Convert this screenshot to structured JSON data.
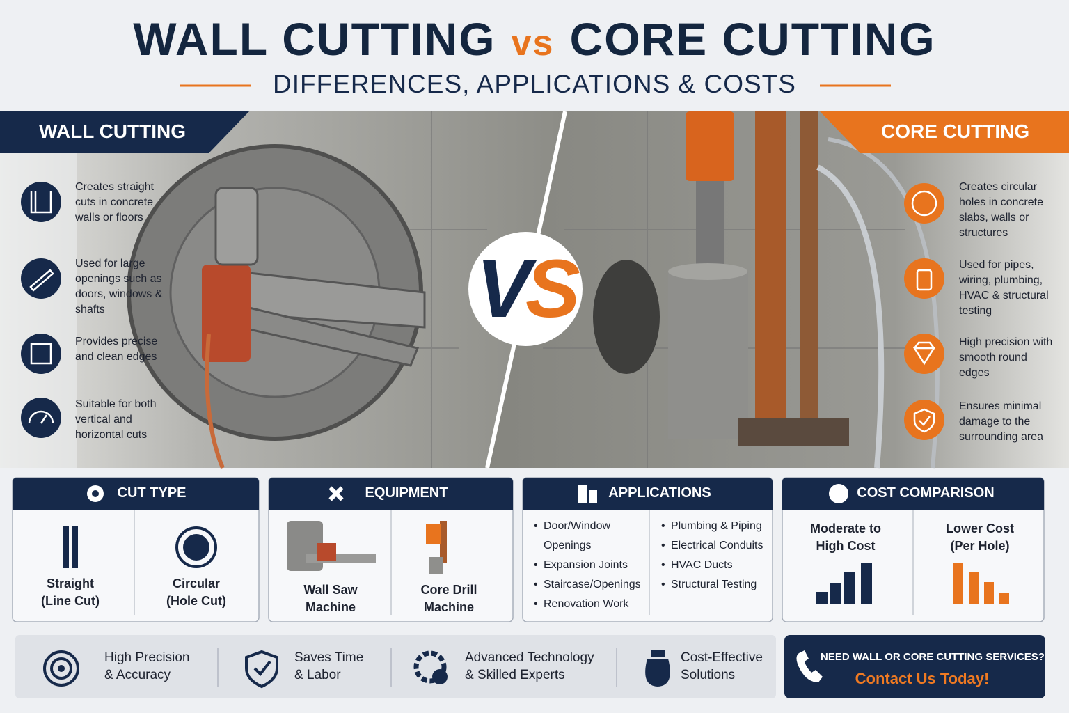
{
  "header": {
    "title_left": "WALL CUTTING",
    "title_vs": "vs",
    "title_right": "CORE CUTTING",
    "subtitle": "DIFFERENCES, APPLICATIONS & COSTS"
  },
  "wall": {
    "label": "WALL CUTTING",
    "features": [
      "Creates straight cuts in concrete walls or floors",
      "Used for large openings such as doors, windows & shafts",
      "Provides precise and clean edges",
      "Suitable for both vertical and horizontal cuts"
    ]
  },
  "core": {
    "label": "CORE CUTTING",
    "features": [
      "Creates circular holes in concrete slabs, walls or structures",
      "Used for pipes, wiring, plumbing, HVAC & structural testing",
      "High precision with smooth round edges",
      "Ensures minimal damage to the surrounding area"
    ]
  },
  "vs_badge": "VS",
  "panels": {
    "cut_type": {
      "title": "CUT TYPE",
      "items": [
        [
          "Straight",
          "(Line Cut)"
        ],
        [
          "Circular",
          "(Hole Cut)"
        ]
      ]
    },
    "equipment": {
      "title": "EQUIPMENT",
      "items": [
        [
          "Wall Saw",
          "Machine"
        ],
        [
          "Core Drill",
          "Machine"
        ]
      ]
    },
    "applications": {
      "title": "APPLICATIONS",
      "left": [
        "Door/Window Openings",
        "Expansion Joints",
        "Staircase/Openings",
        "Renovation Work"
      ],
      "right": [
        "Plumbing & Piping",
        "Electrical Conduits",
        "HVAC Ducts",
        "Structural Testing"
      ]
    },
    "cost": {
      "title": "COST COMPARISON",
      "items": [
        [
          "Moderate to",
          "High Cost"
        ],
        [
          "Lower Cost",
          "(Per Hole)"
        ]
      ]
    }
  },
  "benefits": [
    [
      "High Precision",
      "& Accuracy"
    ],
    [
      "Saves Time",
      "& Labor"
    ],
    [
      "Advanced Technology",
      "& Skilled Experts"
    ],
    [
      "Cost-Effective",
      "Solutions"
    ]
  ],
  "cta": {
    "question": "NEED WALL OR CORE CUTTING SERVICES?",
    "action": "Contact Us Today!"
  }
}
